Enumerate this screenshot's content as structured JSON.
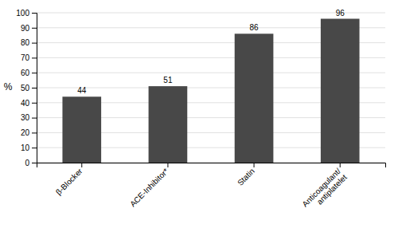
{
  "chart_data": {
    "type": "bar",
    "categories": [
      "β-Blocker",
      "ACE-Inhibitor*",
      "Statin",
      "Anticoagulant/\nantiplatelet"
    ],
    "values": [
      44,
      51,
      86,
      96
    ],
    "color": "#484848",
    "ylabel": "%",
    "ylim": [
      0,
      100
    ],
    "yticks": [
      0,
      10,
      20,
      30,
      40,
      50,
      60,
      70,
      80,
      90,
      100
    ],
    "grid": true,
    "data_labels": true
  }
}
